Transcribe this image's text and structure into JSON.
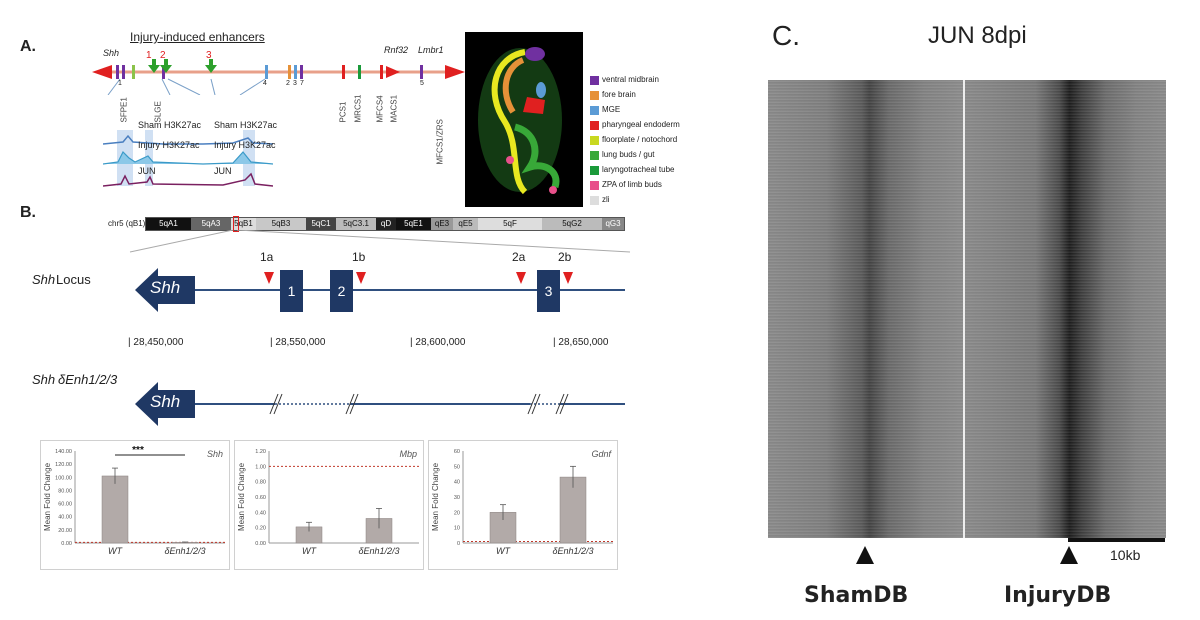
{
  "panelA": {
    "letter": "A.",
    "title": "Injury-induced enhancers",
    "genes": {
      "shh": "Shh",
      "rnf32": "Rnf32",
      "lmbr1": "Lmbr1"
    },
    "enhancer_numbers": [
      "1",
      "2",
      "3"
    ],
    "exon_numbers": [
      "1",
      "4",
      "2",
      "3",
      "7",
      "5"
    ],
    "element_labels": [
      "SFPE1",
      "SLGE",
      "PCS1",
      "MRCS1",
      "MFCS4",
      "MACS1",
      "MFCS1/ZRS"
    ],
    "tracks": {
      "sham": "Sham H3K27ac",
      "injury": "Injury H3K27ac",
      "jun": "JUN"
    },
    "legend": [
      {
        "label": "ventral midbrain",
        "color": "#7030a0"
      },
      {
        "label": "fore brain",
        "color": "#e69138"
      },
      {
        "label": "MGE",
        "color": "#5b9bd5"
      },
      {
        "label": "pharyngeal endoderm",
        "color": "#e02020"
      },
      {
        "label": "floorplate / notochord",
        "color": "#c8d820"
      },
      {
        "label": "lung buds / gut",
        "color": "#38a838"
      },
      {
        "label": "laryngotracheal tube",
        "color": "#1a9a3a"
      },
      {
        "label": "ZPA of limb buds",
        "color": "#e8508a"
      },
      {
        "label": "zli",
        "color": "#dddddd"
      }
    ]
  },
  "panelB": {
    "letter": "B.",
    "chrom_label": "chr5 (qB1)",
    "bands": [
      "5qA1",
      "5qA3",
      "5qB1",
      "5qB3",
      "5qC1",
      "5qC3.1",
      "qD",
      "5qE1",
      "qE3",
      "qE5",
      "5qF",
      "5qG2",
      "qG3"
    ],
    "locus_label": "Locus",
    "gene": "Shh",
    "exons": [
      "1",
      "2",
      "3"
    ],
    "sites": [
      "1a",
      "1b",
      "2a",
      "2b"
    ],
    "coords": [
      "| 28,450,000",
      "| 28,550,000",
      "| 28,600,000",
      "| 28,650,000"
    ],
    "deletion_label": "δEnh1/2/3",
    "charts": [
      {
        "gene": "Shh",
        "ylabel": "Mean Fold Change",
        "yticks": [
          "140.00",
          "120.00",
          "100.00",
          "80.00",
          "60.00",
          "40.00",
          "20.00",
          "0.00"
        ],
        "categories": [
          "WT",
          "δEnh1/2/3"
        ],
        "significance": "***"
      },
      {
        "gene": "Mbp",
        "ylabel": "Mean Fold Change",
        "yticks": [
          "1.20",
          "1.00",
          "0.80",
          "0.60",
          "0.40",
          "0.20",
          "0.00"
        ],
        "categories": [
          "WT",
          "δEnh1/2/3"
        ]
      },
      {
        "gene": "Gdnf",
        "ylabel": "Mean Fold Change",
        "yticks": [
          "60",
          "50",
          "40",
          "30",
          "20",
          "10",
          "0"
        ],
        "categories": [
          "WT",
          "δEnh1/2/3"
        ]
      }
    ]
  },
  "chart_data": [
    {
      "type": "bar",
      "title": "Shh",
      "ylabel": "Mean Fold Change",
      "categories": [
        "WT",
        "δEnh1/2/3"
      ],
      "values": [
        102,
        1
      ],
      "errors": [
        12,
        0.5
      ],
      "ylim": [
        0,
        140
      ],
      "reference_line": 1
    },
    {
      "type": "bar",
      "title": "Mbp",
      "ylabel": "Mean Fold Change",
      "categories": [
        "WT",
        "δEnh1/2/3"
      ],
      "values": [
        0.21,
        0.32
      ],
      "errors": [
        0.06,
        0.13
      ],
      "ylim": [
        0,
        1.2
      ],
      "reference_line": 1
    },
    {
      "type": "bar",
      "title": "Gdnf",
      "ylabel": "Mean Fold Change",
      "categories": [
        "WT",
        "δEnh1/2/3"
      ],
      "values": [
        20,
        43
      ],
      "errors": [
        5,
        7
      ],
      "ylim": [
        0,
        60
      ],
      "reference_line": 1
    }
  ],
  "panelC": {
    "letter": "C.",
    "title": "JUN 8dpi",
    "scale_label": "10kb",
    "labels": [
      "ShamDB",
      "InjuryDB"
    ]
  }
}
